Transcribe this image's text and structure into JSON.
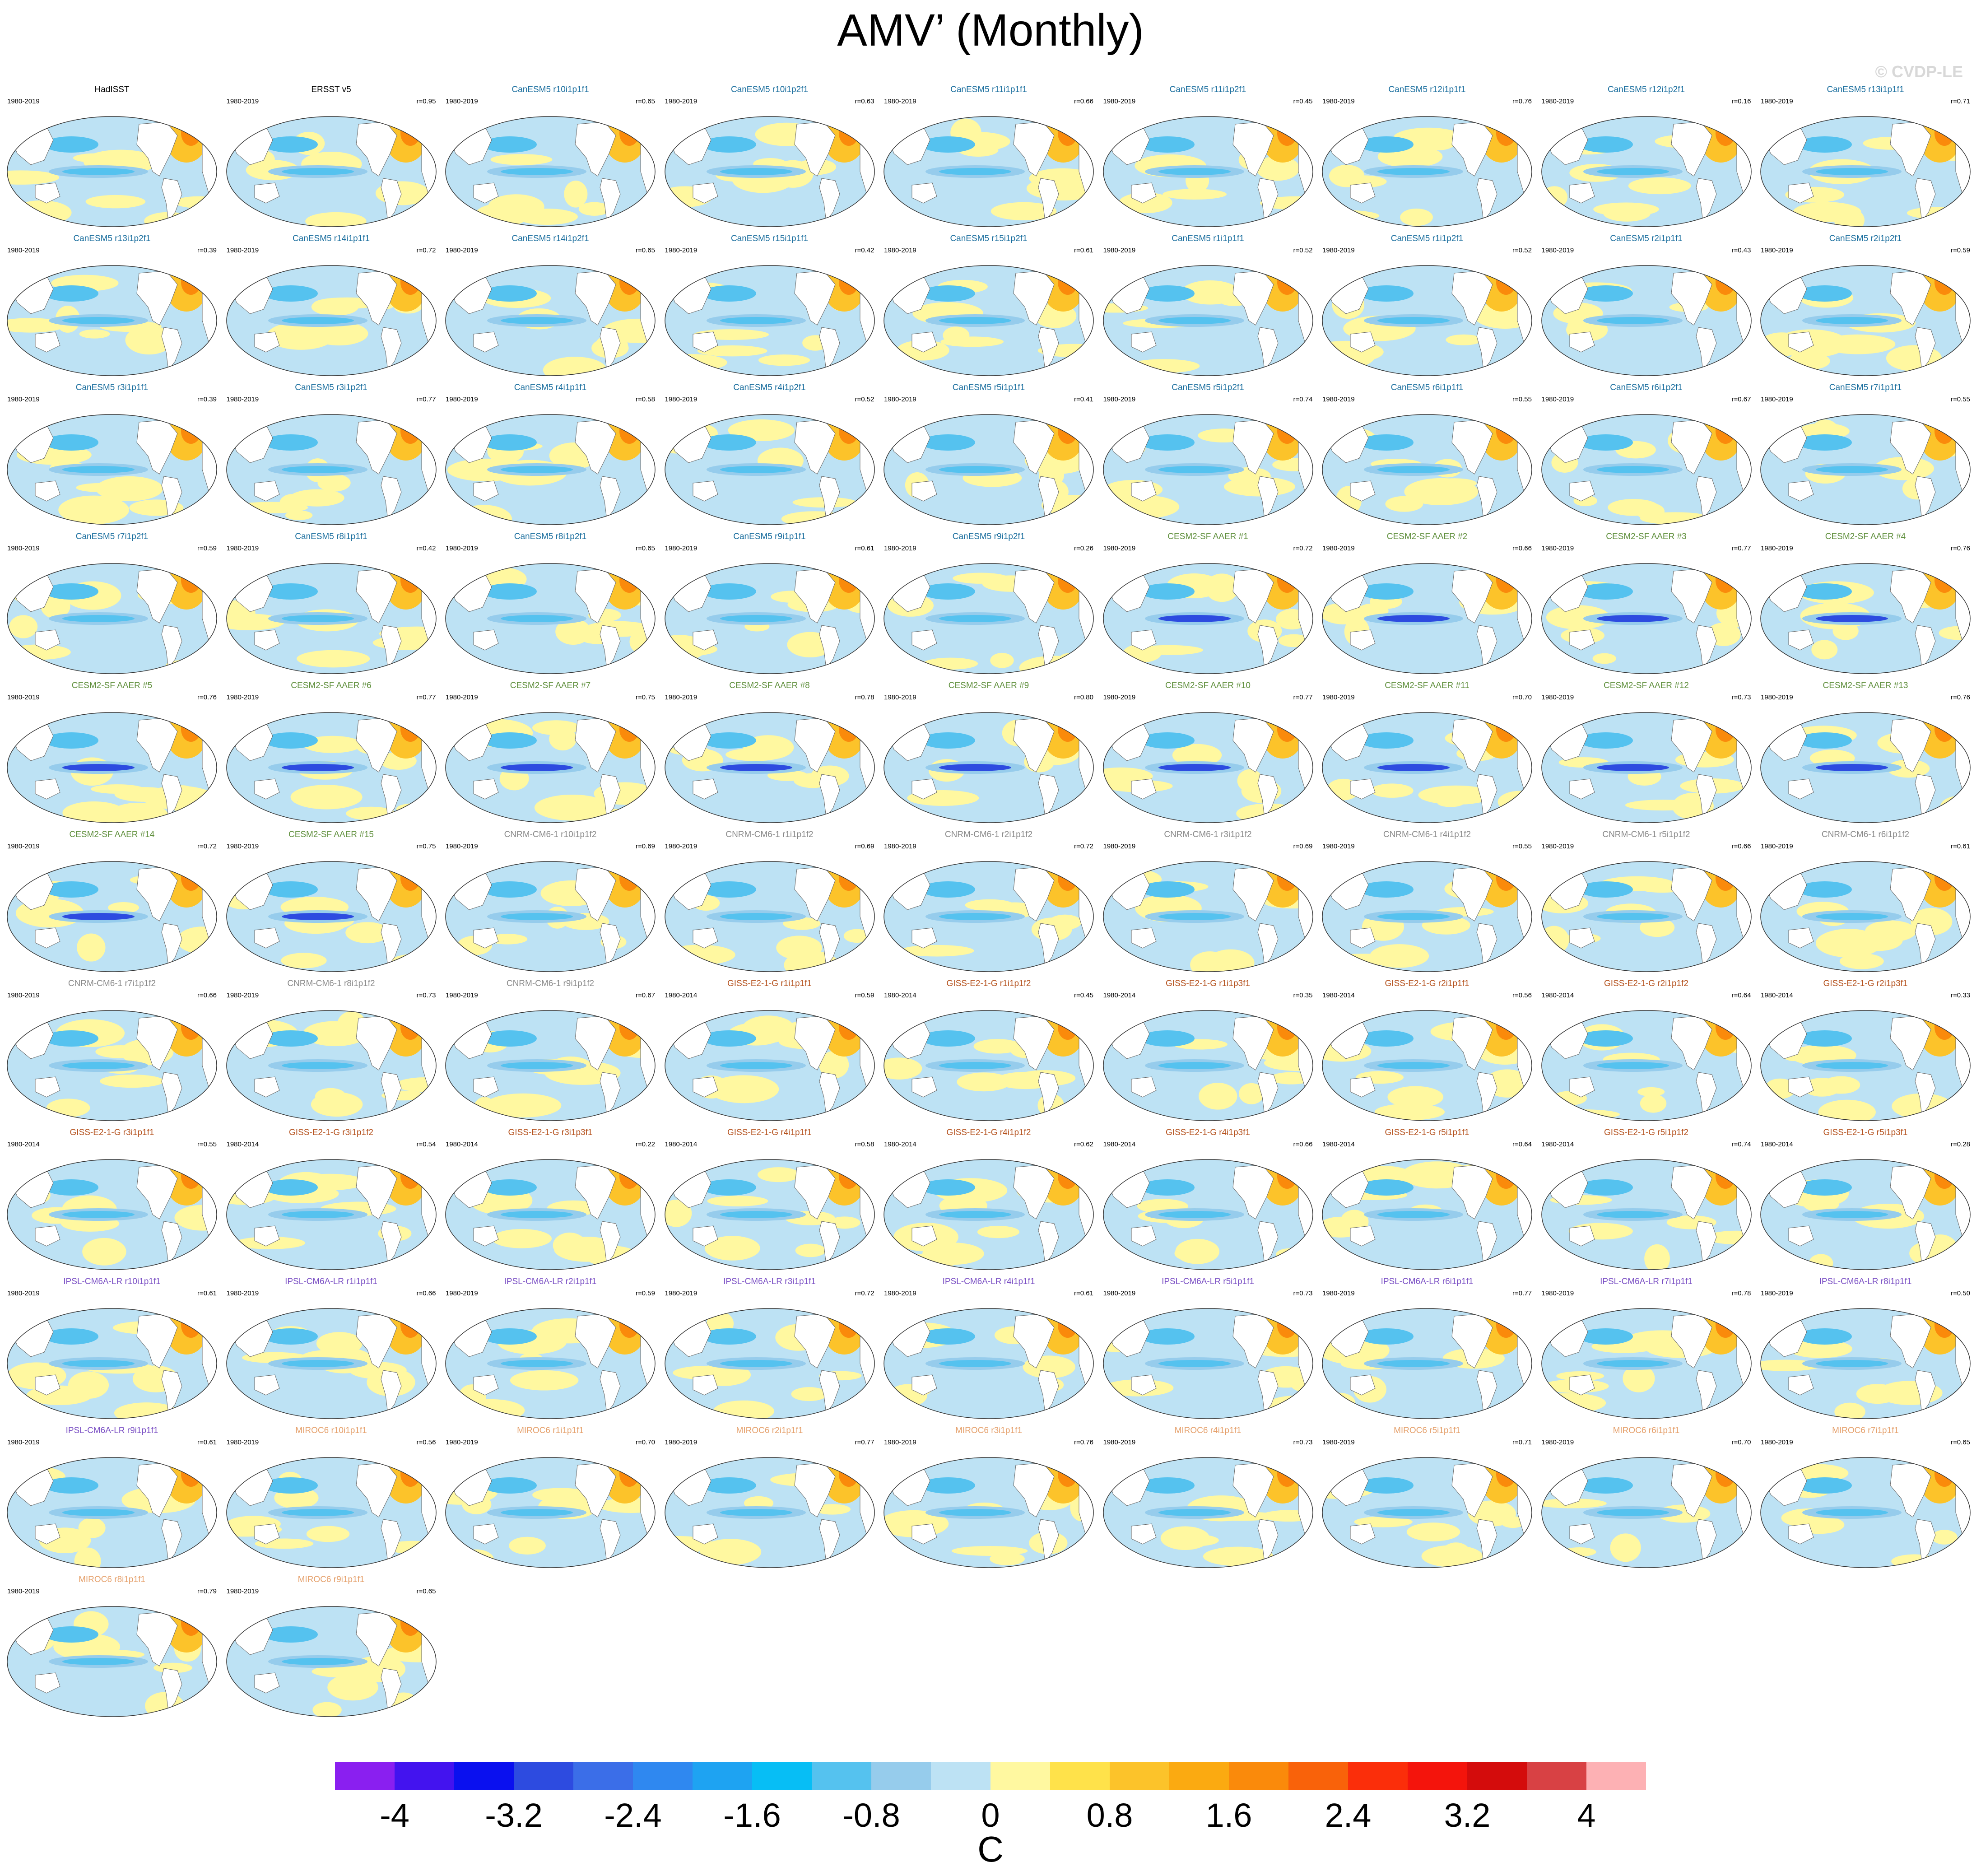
{
  "title": "AMV’ (Monthly)",
  "watermark": "© CVDP-LE",
  "colors": {
    "CanESM5": "#1a6e9e",
    "CESM2-SF AAER": "#5f8f3c",
    "CNRM-CM6-1": "#8a8a8a",
    "GISS-E2-1-G": "#b5521e",
    "IPSL-CM6A-LR": "#7a4fc4",
    "MIROC6": "#e5a06b",
    "obs": "#000000"
  },
  "panels": [
    {
      "member": "HadISST",
      "model": "obs",
      "period": "1980-2019",
      "r": ""
    },
    {
      "member": "ERSST v5",
      "model": "obs",
      "period": "1980-2019",
      "r": "r=0.95"
    },
    {
      "member": "CanESM5 r10i1p1f1",
      "model": "CanESM5",
      "period": "1980-2019",
      "r": "r=0.65"
    },
    {
      "member": "CanESM5 r10i1p2f1",
      "model": "CanESM5",
      "period": "1980-2019",
      "r": "r=0.63"
    },
    {
      "member": "CanESM5 r11i1p1f1",
      "model": "CanESM5",
      "period": "1980-2019",
      "r": "r=0.66"
    },
    {
      "member": "CanESM5 r11i1p2f1",
      "model": "CanESM5",
      "period": "1980-2019",
      "r": "r=0.45"
    },
    {
      "member": "CanESM5 r12i1p1f1",
      "model": "CanESM5",
      "period": "1980-2019",
      "r": "r=0.76"
    },
    {
      "member": "CanESM5 r12i1p2f1",
      "model": "CanESM5",
      "period": "1980-2019",
      "r": "r=0.16"
    },
    {
      "member": "CanESM5 r13i1p1f1",
      "model": "CanESM5",
      "period": "1980-2019",
      "r": "r=0.71"
    },
    {
      "member": "CanESM5 r13i1p2f1",
      "model": "CanESM5",
      "period": "1980-2019",
      "r": "r=0.39"
    },
    {
      "member": "CanESM5 r14i1p1f1",
      "model": "CanESM5",
      "period": "1980-2019",
      "r": "r=0.72"
    },
    {
      "member": "CanESM5 r14i1p2f1",
      "model": "CanESM5",
      "period": "1980-2019",
      "r": "r=0.65"
    },
    {
      "member": "CanESM5 r15i1p1f1",
      "model": "CanESM5",
      "period": "1980-2019",
      "r": "r=0.42"
    },
    {
      "member": "CanESM5 r15i1p2f1",
      "model": "CanESM5",
      "period": "1980-2019",
      "r": "r=0.61"
    },
    {
      "member": "CanESM5 r1i1p1f1",
      "model": "CanESM5",
      "period": "1980-2019",
      "r": "r=0.52"
    },
    {
      "member": "CanESM5 r1i1p2f1",
      "model": "CanESM5",
      "period": "1980-2019",
      "r": "r=0.52"
    },
    {
      "member": "CanESM5 r2i1p1f1",
      "model": "CanESM5",
      "period": "1980-2019",
      "r": "r=0.43"
    },
    {
      "member": "CanESM5 r2i1p2f1",
      "model": "CanESM5",
      "period": "1980-2019",
      "r": "r=0.59"
    },
    {
      "member": "CanESM5 r3i1p1f1",
      "model": "CanESM5",
      "period": "1980-2019",
      "r": "r=0.39"
    },
    {
      "member": "CanESM5 r3i1p2f1",
      "model": "CanESM5",
      "period": "1980-2019",
      "r": "r=0.77"
    },
    {
      "member": "CanESM5 r4i1p1f1",
      "model": "CanESM5",
      "period": "1980-2019",
      "r": "r=0.58"
    },
    {
      "member": "CanESM5 r4i1p2f1",
      "model": "CanESM5",
      "period": "1980-2019",
      "r": "r=0.52"
    },
    {
      "member": "CanESM5 r5i1p1f1",
      "model": "CanESM5",
      "period": "1980-2019",
      "r": "r=0.41"
    },
    {
      "member": "CanESM5 r5i1p2f1",
      "model": "CanESM5",
      "period": "1980-2019",
      "r": "r=0.74"
    },
    {
      "member": "CanESM5 r6i1p1f1",
      "model": "CanESM5",
      "period": "1980-2019",
      "r": "r=0.55"
    },
    {
      "member": "CanESM5 r6i1p2f1",
      "model": "CanESM5",
      "period": "1980-2019",
      "r": "r=0.67"
    },
    {
      "member": "CanESM5 r7i1p1f1",
      "model": "CanESM5",
      "period": "1980-2019",
      "r": "r=0.55"
    },
    {
      "member": "CanESM5 r7i1p2f1",
      "model": "CanESM5",
      "period": "1980-2019",
      "r": "r=0.59"
    },
    {
      "member": "CanESM5 r8i1p1f1",
      "model": "CanESM5",
      "period": "1980-2019",
      "r": "r=0.42"
    },
    {
      "member": "CanESM5 r8i1p2f1",
      "model": "CanESM5",
      "period": "1980-2019",
      "r": "r=0.65"
    },
    {
      "member": "CanESM5 r9i1p1f1",
      "model": "CanESM5",
      "period": "1980-2019",
      "r": "r=0.61"
    },
    {
      "member": "CanESM5 r9i1p2f1",
      "model": "CanESM5",
      "period": "1980-2019",
      "r": "r=0.26"
    },
    {
      "member": "CESM2-SF AAER #1",
      "model": "CESM2-SF AAER",
      "period": "1980-2019",
      "r": "r=0.72"
    },
    {
      "member": "CESM2-SF AAER #2",
      "model": "CESM2-SF AAER",
      "period": "1980-2019",
      "r": "r=0.66"
    },
    {
      "member": "CESM2-SF AAER #3",
      "model": "CESM2-SF AAER",
      "period": "1980-2019",
      "r": "r=0.77"
    },
    {
      "member": "CESM2-SF AAER #4",
      "model": "CESM2-SF AAER",
      "period": "1980-2019",
      "r": "r=0.76"
    },
    {
      "member": "CESM2-SF AAER #5",
      "model": "CESM2-SF AAER",
      "period": "1980-2019",
      "r": "r=0.76"
    },
    {
      "member": "CESM2-SF AAER #6",
      "model": "CESM2-SF AAER",
      "period": "1980-2019",
      "r": "r=0.77"
    },
    {
      "member": "CESM2-SF AAER #7",
      "model": "CESM2-SF AAER",
      "period": "1980-2019",
      "r": "r=0.75"
    },
    {
      "member": "CESM2-SF AAER #8",
      "model": "CESM2-SF AAER",
      "period": "1980-2019",
      "r": "r=0.78"
    },
    {
      "member": "CESM2-SF AAER #9",
      "model": "CESM2-SF AAER",
      "period": "1980-2019",
      "r": "r=0.80"
    },
    {
      "member": "CESM2-SF AAER #10",
      "model": "CESM2-SF AAER",
      "period": "1980-2019",
      "r": "r=0.77"
    },
    {
      "member": "CESM2-SF AAER #11",
      "model": "CESM2-SF AAER",
      "period": "1980-2019",
      "r": "r=0.70"
    },
    {
      "member": "CESM2-SF AAER #12",
      "model": "CESM2-SF AAER",
      "period": "1980-2019",
      "r": "r=0.73"
    },
    {
      "member": "CESM2-SF AAER #13",
      "model": "CESM2-SF AAER",
      "period": "1980-2019",
      "r": "r=0.76"
    },
    {
      "member": "CESM2-SF AAER #14",
      "model": "CESM2-SF AAER",
      "period": "1980-2019",
      "r": "r=0.72"
    },
    {
      "member": "CESM2-SF AAER #15",
      "model": "CESM2-SF AAER",
      "period": "1980-2019",
      "r": "r=0.75"
    },
    {
      "member": "CNRM-CM6-1 r10i1p1f2",
      "model": "CNRM-CM6-1",
      "period": "1980-2019",
      "r": "r=0.69"
    },
    {
      "member": "CNRM-CM6-1 r1i1p1f2",
      "model": "CNRM-CM6-1",
      "period": "1980-2019",
      "r": "r=0.69"
    },
    {
      "member": "CNRM-CM6-1 r2i1p1f2",
      "model": "CNRM-CM6-1",
      "period": "1980-2019",
      "r": "r=0.72"
    },
    {
      "member": "CNRM-CM6-1 r3i1p1f2",
      "model": "CNRM-CM6-1",
      "period": "1980-2019",
      "r": "r=0.69"
    },
    {
      "member": "CNRM-CM6-1 r4i1p1f2",
      "model": "CNRM-CM6-1",
      "period": "1980-2019",
      "r": "r=0.55"
    },
    {
      "member": "CNRM-CM6-1 r5i1p1f2",
      "model": "CNRM-CM6-1",
      "period": "1980-2019",
      "r": "r=0.66"
    },
    {
      "member": "CNRM-CM6-1 r6i1p1f2",
      "model": "CNRM-CM6-1",
      "period": "1980-2019",
      "r": "r=0.61"
    },
    {
      "member": "CNRM-CM6-1 r7i1p1f2",
      "model": "CNRM-CM6-1",
      "period": "1980-2019",
      "r": "r=0.66"
    },
    {
      "member": "CNRM-CM6-1 r8i1p1f2",
      "model": "CNRM-CM6-1",
      "period": "1980-2019",
      "r": "r=0.73"
    },
    {
      "member": "CNRM-CM6-1 r9i1p1f2",
      "model": "CNRM-CM6-1",
      "period": "1980-2019",
      "r": "r=0.67"
    },
    {
      "member": "GISS-E2-1-G r1i1p1f1",
      "model": "GISS-E2-1-G",
      "period": "1980-2014",
      "r": "r=0.59"
    },
    {
      "member": "GISS-E2-1-G r1i1p1f2",
      "model": "GISS-E2-1-G",
      "period": "1980-2014",
      "r": "r=0.45"
    },
    {
      "member": "GISS-E2-1-G r1i1p3f1",
      "model": "GISS-E2-1-G",
      "period": "1980-2014",
      "r": "r=0.35"
    },
    {
      "member": "GISS-E2-1-G r2i1p1f1",
      "model": "GISS-E2-1-G",
      "period": "1980-2014",
      "r": "r=0.56"
    },
    {
      "member": "GISS-E2-1-G r2i1p1f2",
      "model": "GISS-E2-1-G",
      "period": "1980-2014",
      "r": "r=0.64"
    },
    {
      "member": "GISS-E2-1-G r2i1p3f1",
      "model": "GISS-E2-1-G",
      "period": "1980-2014",
      "r": "r=0.33"
    },
    {
      "member": "GISS-E2-1-G r3i1p1f1",
      "model": "GISS-E2-1-G",
      "period": "1980-2014",
      "r": "r=0.55"
    },
    {
      "member": "GISS-E2-1-G r3i1p1f2",
      "model": "GISS-E2-1-G",
      "period": "1980-2014",
      "r": "r=0.54"
    },
    {
      "member": "GISS-E2-1-G r3i1p3f1",
      "model": "GISS-E2-1-G",
      "period": "1980-2014",
      "r": "r=0.22"
    },
    {
      "member": "GISS-E2-1-G r4i1p1f1",
      "model": "GISS-E2-1-G",
      "period": "1980-2014",
      "r": "r=0.58"
    },
    {
      "member": "GISS-E2-1-G r4i1p1f2",
      "model": "GISS-E2-1-G",
      "period": "1980-2014",
      "r": "r=0.62"
    },
    {
      "member": "GISS-E2-1-G r4i1p3f1",
      "model": "GISS-E2-1-G",
      "period": "1980-2014",
      "r": "r=0.66"
    },
    {
      "member": "GISS-E2-1-G r5i1p1f1",
      "model": "GISS-E2-1-G",
      "period": "1980-2014",
      "r": "r=0.64"
    },
    {
      "member": "GISS-E2-1-G r5i1p1f2",
      "model": "GISS-E2-1-G",
      "period": "1980-2014",
      "r": "r=0.74"
    },
    {
      "member": "GISS-E2-1-G r5i1p3f1",
      "model": "GISS-E2-1-G",
      "period": "1980-2014",
      "r": "r=0.28"
    },
    {
      "member": "IPSL-CM6A-LR r10i1p1f1",
      "model": "IPSL-CM6A-LR",
      "period": "1980-2019",
      "r": "r=0.61"
    },
    {
      "member": "IPSL-CM6A-LR r1i1p1f1",
      "model": "IPSL-CM6A-LR",
      "period": "1980-2019",
      "r": "r=0.66"
    },
    {
      "member": "IPSL-CM6A-LR r2i1p1f1",
      "model": "IPSL-CM6A-LR",
      "period": "1980-2019",
      "r": "r=0.59"
    },
    {
      "member": "IPSL-CM6A-LR r3i1p1f1",
      "model": "IPSL-CM6A-LR",
      "period": "1980-2019",
      "r": "r=0.72"
    },
    {
      "member": "IPSL-CM6A-LR r4i1p1f1",
      "model": "IPSL-CM6A-LR",
      "period": "1980-2019",
      "r": "r=0.61"
    },
    {
      "member": "IPSL-CM6A-LR r5i1p1f1",
      "model": "IPSL-CM6A-LR",
      "period": "1980-2019",
      "r": "r=0.73"
    },
    {
      "member": "IPSL-CM6A-LR r6i1p1f1",
      "model": "IPSL-CM6A-LR",
      "period": "1980-2019",
      "r": "r=0.77"
    },
    {
      "member": "IPSL-CM6A-LR r7i1p1f1",
      "model": "IPSL-CM6A-LR",
      "period": "1980-2019",
      "r": "r=0.78"
    },
    {
      "member": "IPSL-CM6A-LR r8i1p1f1",
      "model": "IPSL-CM6A-LR",
      "period": "1980-2019",
      "r": "r=0.50"
    },
    {
      "member": "IPSL-CM6A-LR r9i1p1f1",
      "model": "IPSL-CM6A-LR",
      "period": "1980-2019",
      "r": "r=0.61"
    },
    {
      "member": "MIROC6 r10i1p1f1",
      "model": "MIROC6",
      "period": "1980-2019",
      "r": "r=0.56"
    },
    {
      "member": "MIROC6 r1i1p1f1",
      "model": "MIROC6",
      "period": "1980-2019",
      "r": "r=0.70"
    },
    {
      "member": "MIROC6 r2i1p1f1",
      "model": "MIROC6",
      "period": "1980-2019",
      "r": "r=0.77"
    },
    {
      "member": "MIROC6 r3i1p1f1",
      "model": "MIROC6",
      "period": "1980-2019",
      "r": "r=0.76"
    },
    {
      "member": "MIROC6 r4i1p1f1",
      "model": "MIROC6",
      "period": "1980-2019",
      "r": "r=0.73"
    },
    {
      "member": "MIROC6 r5i1p1f1",
      "model": "MIROC6",
      "period": "1980-2019",
      "r": "r=0.71"
    },
    {
      "member": "MIROC6 r6i1p1f1",
      "model": "MIROC6",
      "period": "1980-2019",
      "r": "r=0.70"
    },
    {
      "member": "MIROC6 r7i1p1f1",
      "model": "MIROC6",
      "period": "1980-2019",
      "r": "r=0.65"
    },
    {
      "member": "MIROC6 r8i1p1f1",
      "model": "MIROC6",
      "period": "1980-2019",
      "r": "r=0.79"
    },
    {
      "member": "MIROC6 r9i1p1f1",
      "model": "MIROC6",
      "period": "1980-2019",
      "r": "r=0.65"
    }
  ],
  "colorbar": {
    "colors": [
      "#8a1ff0",
      "#4313ef",
      "#0a10ef",
      "#2d4be0",
      "#3b6ee8",
      "#2f88f0",
      "#1ea3f2",
      "#07bef5",
      "#55c2ef",
      "#96ccec",
      "#bde2f4",
      "#fff8a0",
      "#ffe24a",
      "#fcc32a",
      "#fbaa11",
      "#fa8a0b",
      "#f9620a",
      "#fb2e0a",
      "#f4140c",
      "#d40c0c",
      "#d84144",
      "#fdb1b4"
    ],
    "tick_labels": [
      "-4",
      "-3.2",
      "-2.4",
      "-1.6",
      "-0.8",
      "0",
      "0.8",
      "1.6",
      "2.4",
      "3.2",
      "4"
    ],
    "units": "C"
  }
}
